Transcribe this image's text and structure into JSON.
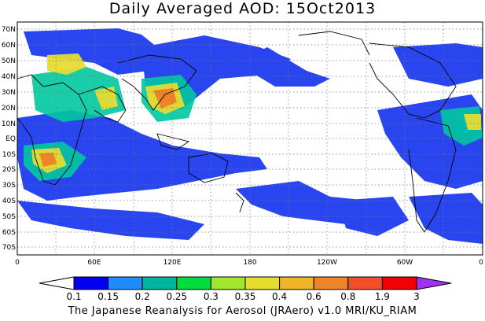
{
  "title": "Daily Averaged AOD: 15Oct2013",
  "credit": "The Japanese Reanalysis for Aerosol (JRAero) v1.0 MRI/KU_RIAM",
  "map": {
    "lat_labels": [
      "70N",
      "60N",
      "50N",
      "40N",
      "30N",
      "20N",
      "10N",
      "EQ",
      "10S",
      "20S",
      "30S",
      "40S",
      "50S",
      "60S",
      "70S"
    ],
    "lon_labels": [
      "0",
      "60E",
      "120E",
      "180",
      "120W",
      "60W",
      "0"
    ]
  },
  "colorbar": {
    "levels": [
      "0.1",
      "0.15",
      "0.2",
      "0.25",
      "0.3",
      "0.35",
      "0.4",
      "0.6",
      "0.8",
      "1.9",
      "3"
    ],
    "colors": [
      "#0000f0",
      "#1e8cff",
      "#00b4a0",
      "#00dc3c",
      "#a0e632",
      "#e6dc32",
      "#f0b428",
      "#f08228",
      "#f05028",
      "#f00000",
      "#a032f0"
    ]
  }
}
